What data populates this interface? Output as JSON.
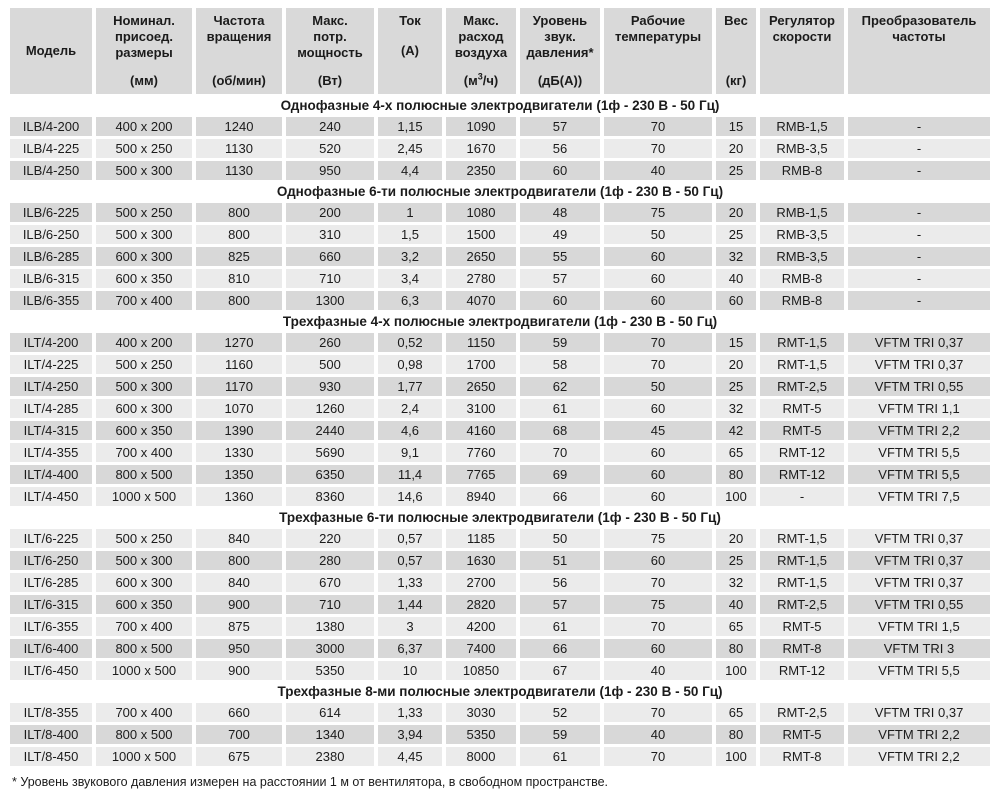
{
  "table": {
    "columns": [
      {
        "label": "Модель",
        "unit": ""
      },
      {
        "label": "Номинал.\nприсоед.\nразмеры",
        "unit": "(мм)"
      },
      {
        "label": "Частота\nвращения",
        "unit": "(об/мин)"
      },
      {
        "label": "Макс.\nпотр.\nмощность",
        "unit": "(Вт)"
      },
      {
        "label": "Ток",
        "unit": "(А)"
      },
      {
        "label": "Макс.\nрасход\nвоздуха",
        "unit_pre": "(м",
        "unit_sup": "3",
        "unit_post": "/ч)"
      },
      {
        "label": "Уровень\nзвук.\nдавления*",
        "unit": "(дБ(А))"
      },
      {
        "label": "Рабочие\nтемпературы",
        "unit": ""
      },
      {
        "label": "Вес",
        "unit": "(кг)"
      },
      {
        "label": "Регулятор\nскорости",
        "unit": ""
      },
      {
        "label": "Преобразователь\nчастоты",
        "unit": ""
      }
    ],
    "sections": [
      {
        "title": "Однофазные 4-х полюсные электродвигатели (1ф - 230 В - 50 Гц)",
        "rows": [
          [
            "ILB/4-200",
            "400 x 200",
            "1240",
            "240",
            "1,15",
            "1090",
            "57",
            "70",
            "15",
            "RMB-1,5",
            "-"
          ],
          [
            "ILB/4-225",
            "500 x 250",
            "1130",
            "520",
            "2,45",
            "1670",
            "56",
            "70",
            "20",
            "RMB-3,5",
            "-"
          ],
          [
            "ILB/4-250",
            "500 x 300",
            "1130",
            "950",
            "4,4",
            "2350",
            "60",
            "40",
            "25",
            "RMB-8",
            "-"
          ]
        ]
      },
      {
        "title": "Однофазные 6-ти полюсные электродвигатели (1ф - 230 В - 50 Гц)",
        "rows": [
          [
            "ILB/6-225",
            "500 x 250",
            "800",
            "200",
            "1",
            "1080",
            "48",
            "75",
            "20",
            "RMB-1,5",
            "-"
          ],
          [
            "ILB/6-250",
            "500 x 300",
            "800",
            "310",
            "1,5",
            "1500",
            "49",
            "50",
            "25",
            "RMB-3,5",
            "-"
          ],
          [
            "ILB/6-285",
            "600 x 300",
            "825",
            "660",
            "3,2",
            "2650",
            "55",
            "60",
            "32",
            "RMB-3,5",
            "-"
          ],
          [
            "ILB/6-315",
            "600 x 350",
            "810",
            "710",
            "3,4",
            "2780",
            "57",
            "60",
            "40",
            "RMB-8",
            "-"
          ],
          [
            "ILB/6-355",
            "700 x 400",
            "800",
            "1300",
            "6,3",
            "4070",
            "60",
            "60",
            "60",
            "RMB-8",
            "-"
          ]
        ]
      },
      {
        "title": "Трехфазные 4-х полюсные электродвигатели (1ф - 230 В - 50 Гц)",
        "rows": [
          [
            "ILT/4-200",
            "400 x 200",
            "1270",
            "260",
            "0,52",
            "1150",
            "59",
            "70",
            "15",
            "RMT-1,5",
            "VFTM TRI 0,37"
          ],
          [
            "ILT/4-225",
            "500 x 250",
            "1160",
            "500",
            "0,98",
            "1700",
            "58",
            "70",
            "20",
            "RMT-1,5",
            "VFTM TRI 0,37"
          ],
          [
            "ILT/4-250",
            "500 x 300",
            "1170",
            "930",
            "1,77",
            "2650",
            "62",
            "50",
            "25",
            "RMT-2,5",
            "VFTM TRI 0,55"
          ],
          [
            "ILT/4-285",
            "600 x 300",
            "1070",
            "1260",
            "2,4",
            "3100",
            "61",
            "60",
            "32",
            "RMT-5",
            "VFTM TRI 1,1"
          ],
          [
            "ILT/4-315",
            "600 x 350",
            "1390",
            "2440",
            "4,6",
            "4160",
            "68",
            "45",
            "42",
            "RMT-5",
            "VFTM TRI 2,2"
          ],
          [
            "ILT/4-355",
            "700 x 400",
            "1330",
            "5690",
            "9,1",
            "7760",
            "70",
            "60",
            "65",
            "RMT-12",
            "VFTM TRI 5,5"
          ],
          [
            "ILT/4-400",
            "800 x 500",
            "1350",
            "6350",
            "11,4",
            "7765",
            "69",
            "60",
            "80",
            "RMT-12",
            "VFTM TRI 5,5"
          ],
          [
            "ILT/4-450",
            "1000 x 500",
            "1360",
            "8360",
            "14,6",
            "8940",
            "66",
            "60",
            "100",
            "-",
            "VFTM TRI 7,5"
          ]
        ]
      },
      {
        "title": "Трехфазные 6-ти полюсные электродвигатели (1ф - 230 В - 50 Гц)",
        "rows": [
          [
            "ILT/6-225",
            "500 x 250",
            "840",
            "220",
            "0,57",
            "1185",
            "50",
            "75",
            "20",
            "RMT-1,5",
            "VFTM TRI 0,37"
          ],
          [
            "ILT/6-250",
            "500 x 300",
            "800",
            "280",
            "0,57",
            "1630",
            "51",
            "60",
            "25",
            "RMT-1,5",
            "VFTM TRI 0,37"
          ],
          [
            "ILT/6-285",
            "600 x 300",
            "840",
            "670",
            "1,33",
            "2700",
            "56",
            "70",
            "32",
            "RMT-1,5",
            "VFTM TRI 0,37"
          ],
          [
            "ILT/6-315",
            "600 x 350",
            "900",
            "710",
            "1,44",
            "2820",
            "57",
            "75",
            "40",
            "RMT-2,5",
            "VFTM TRI 0,55"
          ],
          [
            "ILT/6-355",
            "700 x 400",
            "875",
            "1380",
            "3",
            "4200",
            "61",
            "70",
            "65",
            "RMT-5",
            "VFTM TRI 1,5"
          ],
          [
            "ILT/6-400",
            "800 x 500",
            "950",
            "3000",
            "6,37",
            "7400",
            "66",
            "60",
            "80",
            "RMT-8",
            "VFTM TRI 3"
          ],
          [
            "ILT/6-450",
            "1000 x 500",
            "900",
            "5350",
            "10",
            "10850",
            "67",
            "40",
            "100",
            "RMT-12",
            "VFTM TRI 5,5"
          ]
        ]
      },
      {
        "title": "Трехфазные 8-ми полюсные электродвигатели (1ф - 230 В - 50 Гц)",
        "rows": [
          [
            "ILT/8-355",
            "700 x 400",
            "660",
            "614",
            "1,33",
            "3030",
            "52",
            "70",
            "65",
            "RMT-2,5",
            "VFTM TRI 0,37"
          ],
          [
            "ILT/8-400",
            "800 x 500",
            "700",
            "1340",
            "3,94",
            "5350",
            "59",
            "40",
            "80",
            "RMT-5",
            "VFTM TRI 2,2"
          ],
          [
            "ILT/8-450",
            "1000 x 500",
            "675",
            "2380",
            "4,45",
            "8000",
            "61",
            "70",
            "100",
            "RMT-8",
            "VFTM TRI 2,2"
          ]
        ]
      }
    ],
    "footnote": "* Уровень звукового давления измерен на расстоянии 1 м от вентилятора, в свободном пространстве.",
    "colors": {
      "header_bg": "#d9d9d9",
      "row_dark": "#d8d8d8",
      "row_light": "#ebebeb",
      "text": "#1b1b1b"
    }
  }
}
